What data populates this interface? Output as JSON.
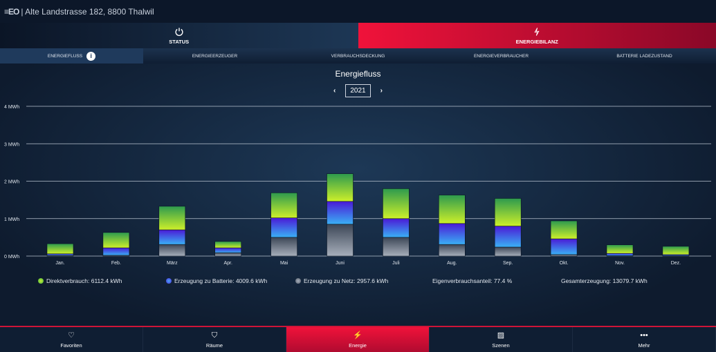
{
  "header": {
    "logo": "≡EO",
    "address": "| Alte Landstrasse 182, 8800 Thalwil"
  },
  "main_tabs": [
    {
      "label": "STATUS",
      "icon": "power-icon"
    },
    {
      "label": "ENERGIEBILANZ",
      "icon": "lightning-icon"
    }
  ],
  "sub_tabs": [
    "ENERGIEFLUSS",
    "ENERGIEERZEUGER",
    "VERBRAUCHSDECKUNG",
    "ENERGIEVERBRAUCHER",
    "BATTERIE LADEZUSTAND"
  ],
  "info_glyph": "i",
  "year_nav": {
    "prev": "‹",
    "year": "2021",
    "next": "›"
  },
  "colors": {
    "direct": "#8fd33a",
    "battery": "#4a5cf0",
    "grid": "#8a93a3",
    "accent": "#f0123a"
  },
  "chart_data": {
    "type": "bar",
    "stacked": true,
    "title": "Energiefluss",
    "categories": [
      "Jan.",
      "Feb.",
      "März",
      "Apr.",
      "Mai",
      "Juni",
      "Juli",
      "Aug.",
      "Sep.",
      "Okt.",
      "Nov.",
      "Dez."
    ],
    "yticks": [
      "0 MWh",
      "1 MWh",
      "2 MWh",
      "3 MWh",
      "4 MWh"
    ],
    "ylim": [
      0,
      4
    ],
    "ylabel": "MWh",
    "series": [
      {
        "name": "Erzeugung zu Netz",
        "values": [
          0.02,
          0.02,
          0.31,
          0.09,
          0.5,
          0.85,
          0.5,
          0.31,
          0.24,
          0.04,
          0.01,
          0.01
        ]
      },
      {
        "name": "Erzeugung zu Batterie",
        "values": [
          0.04,
          0.2,
          0.39,
          0.13,
          0.52,
          0.61,
          0.5,
          0.56,
          0.56,
          0.42,
          0.06,
          0.03
        ]
      },
      {
        "name": "Direktverbrauch",
        "values": [
          0.27,
          0.41,
          0.63,
          0.17,
          0.67,
          0.74,
          0.8,
          0.76,
          0.74,
          0.48,
          0.23,
          0.22
        ]
      }
    ]
  },
  "legend": {
    "direct": "Direktverbrauch: 6112.4 kWh",
    "battery": "Erzeugung zu Batterie: 4009.6 kWh",
    "grid": "Erzeugung zu Netz: 2957.6 kWh",
    "self_share": "Eigenverbrauchsanteil: 77.4 %",
    "total": "Gesamterzeugung: 13079.7 kWh"
  },
  "bottom_nav": [
    {
      "label": "Favoriten",
      "icon": "♡"
    },
    {
      "label": "Räume",
      "icon": "⛉"
    },
    {
      "label": "Energie",
      "icon": "⚡"
    },
    {
      "label": "Szenen",
      "icon": "▨"
    },
    {
      "label": "Mehr",
      "icon": "•••"
    }
  ]
}
